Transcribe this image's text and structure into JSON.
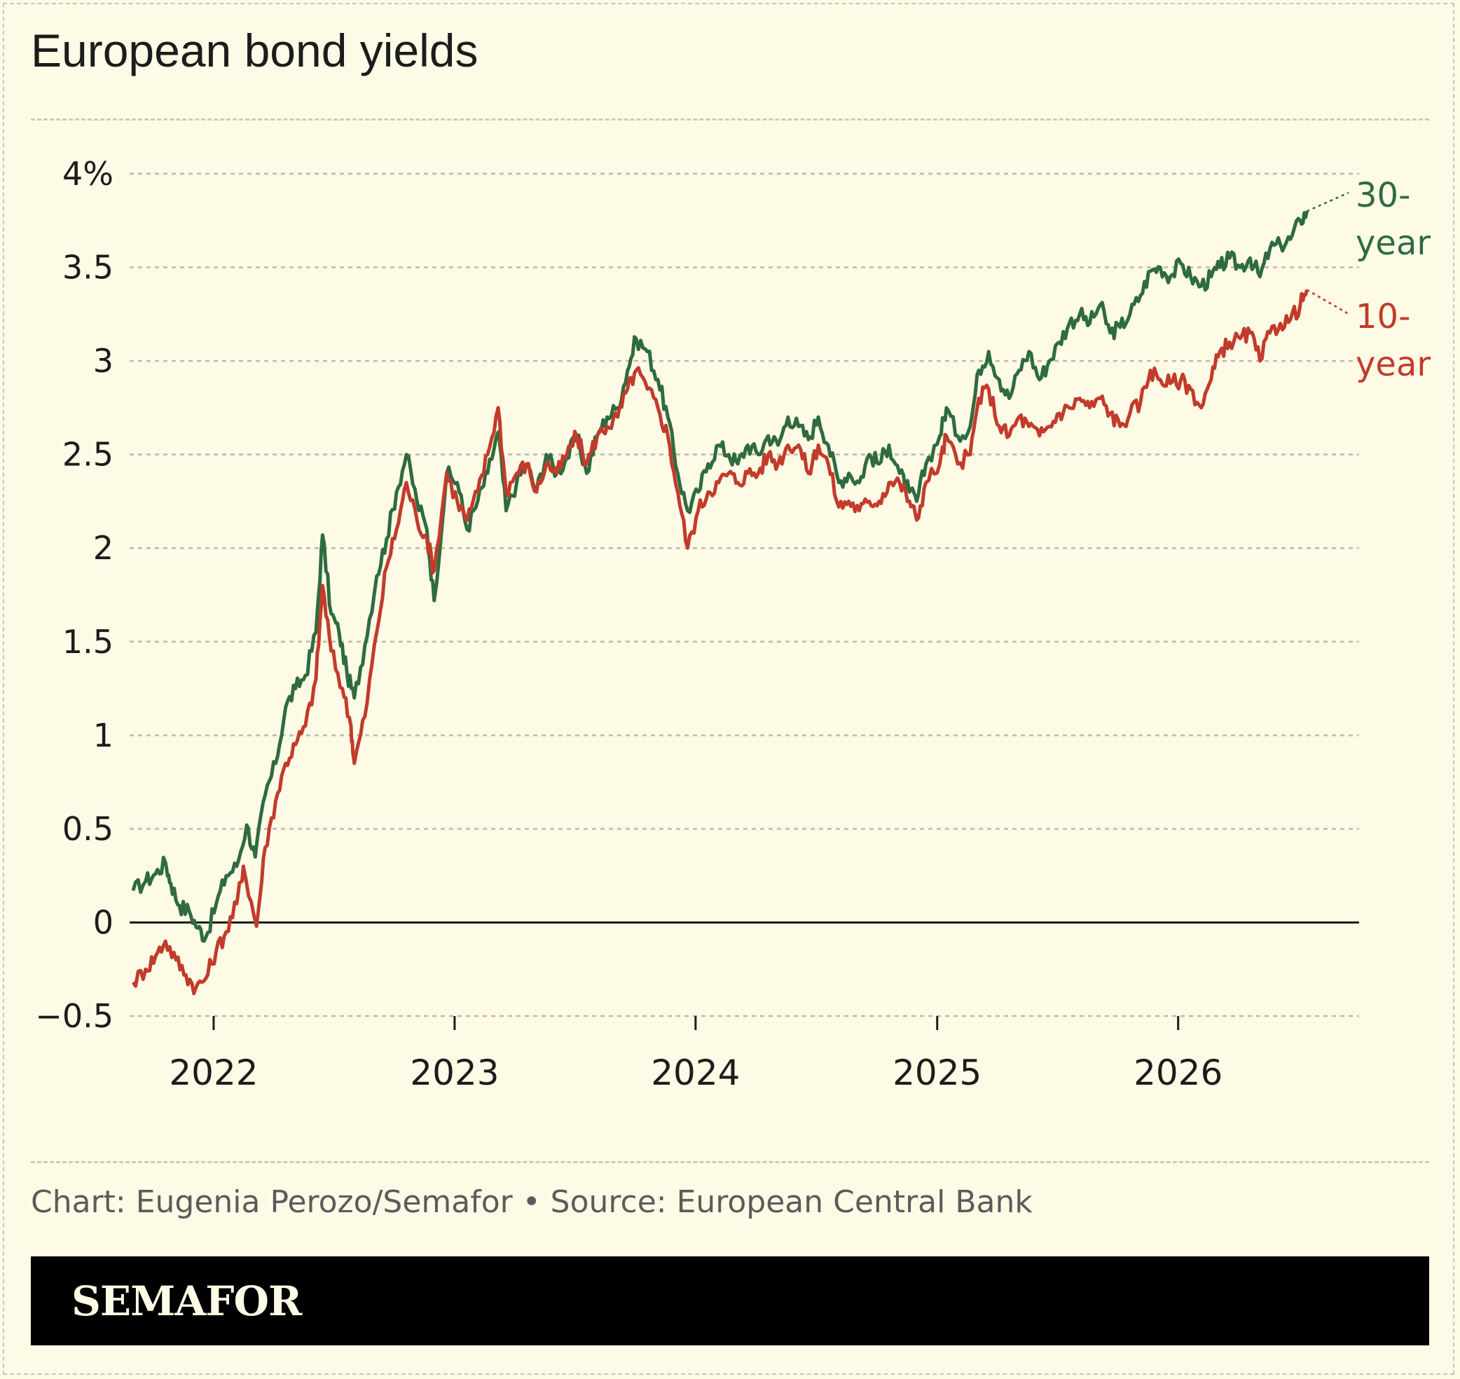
{
  "title": "European bond yields",
  "credit": "Chart: Eugenia Perozo/Semafor • Source: European Central Bank",
  "brand": "SEMAFOR",
  "colors": {
    "background": "#fdfbe6",
    "series_30y": "#2f6b3f",
    "series_10y": "#c23b2b",
    "gridline": "#bdb9a6",
    "zero_line": "#1c1c1c",
    "footer": "#000000"
  },
  "chart_data": {
    "type": "line",
    "y_tick_labels": [
      "−0.5",
      "0",
      "0.5",
      "1",
      "1.5",
      "2",
      "2.5",
      "3",
      "3.5",
      "4%"
    ],
    "y_tick_values": [
      -0.5,
      0,
      0.5,
      1,
      1.5,
      2,
      2.5,
      3,
      3.5,
      4
    ],
    "ylim": [
      -0.5,
      4
    ],
    "x_tick_labels": [
      "2022",
      "2023",
      "2024",
      "2025",
      "2026"
    ],
    "xlim": [
      "2021-09-01",
      "2026-09-30"
    ],
    "grid": true,
    "series": [
      {
        "name": "30-year",
        "label_lines": [
          "30-",
          "year"
        ],
        "color": "#2f6b3f",
        "points": [
          [
            "2021-09-01",
            0.17
          ],
          [
            "2021-09-20",
            0.22
          ],
          [
            "2021-10-05",
            0.26
          ],
          [
            "2021-10-20",
            0.32
          ],
          [
            "2021-10-28",
            0.21
          ],
          [
            "2021-11-10",
            0.09
          ],
          [
            "2021-11-25",
            0.06
          ],
          [
            "2021-12-08",
            -0.03
          ],
          [
            "2021-12-20",
            -0.08
          ],
          [
            "2022-01-05",
            0.1
          ],
          [
            "2022-01-20",
            0.25
          ],
          [
            "2022-02-05",
            0.3
          ],
          [
            "2022-02-20",
            0.52
          ],
          [
            "2022-03-05",
            0.35
          ],
          [
            "2022-03-20",
            0.68
          ],
          [
            "2022-04-05",
            0.85
          ],
          [
            "2022-04-20",
            1.15
          ],
          [
            "2022-05-05",
            1.25
          ],
          [
            "2022-05-20",
            1.32
          ],
          [
            "2022-06-05",
            1.55
          ],
          [
            "2022-06-15",
            2.07
          ],
          [
            "2022-06-28",
            1.65
          ],
          [
            "2022-07-10",
            1.55
          ],
          [
            "2022-07-22",
            1.33
          ],
          [
            "2022-08-02",
            1.2
          ],
          [
            "2022-08-18",
            1.48
          ],
          [
            "2022-09-05",
            1.85
          ],
          [
            "2022-09-20",
            2.05
          ],
          [
            "2022-10-05",
            2.3
          ],
          [
            "2022-10-20",
            2.5
          ],
          [
            "2022-11-05",
            2.25
          ],
          [
            "2022-11-20",
            2.1
          ],
          [
            "2022-12-01",
            1.72
          ],
          [
            "2022-12-20",
            2.4
          ],
          [
            "2023-01-05",
            2.35
          ],
          [
            "2023-01-20",
            2.1
          ],
          [
            "2023-02-05",
            2.25
          ],
          [
            "2023-02-20",
            2.4
          ],
          [
            "2023-03-08",
            2.62
          ],
          [
            "2023-03-20",
            2.2
          ],
          [
            "2023-04-05",
            2.35
          ],
          [
            "2023-04-20",
            2.45
          ],
          [
            "2023-05-05",
            2.3
          ],
          [
            "2023-05-20",
            2.5
          ],
          [
            "2023-06-05",
            2.4
          ],
          [
            "2023-06-20",
            2.48
          ],
          [
            "2023-07-05",
            2.6
          ],
          [
            "2023-07-20",
            2.4
          ],
          [
            "2023-08-05",
            2.6
          ],
          [
            "2023-08-20",
            2.7
          ],
          [
            "2023-09-05",
            2.75
          ],
          [
            "2023-09-20",
            2.95
          ],
          [
            "2023-10-03",
            3.12
          ],
          [
            "2023-10-20",
            3.05
          ],
          [
            "2023-11-05",
            2.9
          ],
          [
            "2023-11-20",
            2.7
          ],
          [
            "2023-12-05",
            2.4
          ],
          [
            "2023-12-20",
            2.2
          ],
          [
            "2024-01-05",
            2.3
          ],
          [
            "2024-01-20",
            2.45
          ],
          [
            "2024-02-05",
            2.55
          ],
          [
            "2024-02-20",
            2.5
          ],
          [
            "2024-03-05",
            2.45
          ],
          [
            "2024-03-20",
            2.55
          ],
          [
            "2024-04-05",
            2.5
          ],
          [
            "2024-04-20",
            2.6
          ],
          [
            "2024-05-05",
            2.55
          ],
          [
            "2024-05-20",
            2.7
          ],
          [
            "2024-06-05",
            2.65
          ],
          [
            "2024-06-20",
            2.58
          ],
          [
            "2024-07-05",
            2.7
          ],
          [
            "2024-07-20",
            2.55
          ],
          [
            "2024-08-05",
            2.35
          ],
          [
            "2024-08-20",
            2.4
          ],
          [
            "2024-09-05",
            2.35
          ],
          [
            "2024-09-20",
            2.5
          ],
          [
            "2024-10-05",
            2.45
          ],
          [
            "2024-10-20",
            2.55
          ],
          [
            "2024-11-05",
            2.4
          ],
          [
            "2024-11-20",
            2.3
          ],
          [
            "2024-12-01",
            2.25
          ],
          [
            "2024-12-15",
            2.45
          ],
          [
            "2025-01-05",
            2.6
          ],
          [
            "2025-01-15",
            2.75
          ],
          [
            "2025-02-01",
            2.6
          ],
          [
            "2025-02-20",
            2.65
          ],
          [
            "2025-03-05",
            2.95
          ],
          [
            "2025-03-20",
            3.05
          ],
          [
            "2025-04-05",
            2.9
          ],
          [
            "2025-04-20",
            2.8
          ],
          [
            "2025-05-05",
            2.95
          ],
          [
            "2025-05-20",
            3.05
          ],
          [
            "2025-06-05",
            2.9
          ],
          [
            "2025-06-20",
            3.0
          ],
          [
            "2025-07-05",
            3.1
          ],
          [
            "2025-07-20",
            3.2
          ],
          [
            "2025-08-05",
            3.25
          ],
          [
            "2025-08-20",
            3.2
          ],
          [
            "2025-09-05",
            3.3
          ],
          [
            "2025-09-20",
            3.15
          ],
          [
            "2025-10-05",
            3.18
          ],
          [
            "2025-10-20",
            3.25
          ],
          [
            "2025-11-05",
            3.35
          ],
          [
            "2025-11-20",
            3.48
          ],
          [
            "2025-12-05",
            3.5
          ],
          [
            "2025-12-20",
            3.45
          ],
          [
            "2026-01-05",
            3.52
          ],
          [
            "2026-01-20",
            3.45
          ],
          [
            "2026-02-05",
            3.4
          ],
          [
            "2026-02-20",
            3.45
          ],
          [
            "2026-03-05",
            3.5
          ],
          [
            "2026-03-20",
            3.55
          ],
          [
            "2026-04-05",
            3.5
          ],
          [
            "2026-04-20",
            3.55
          ],
          [
            "2026-05-05",
            3.45
          ],
          [
            "2026-05-20",
            3.6
          ],
          [
            "2026-06-05",
            3.62
          ],
          [
            "2026-06-20",
            3.65
          ],
          [
            "2026-07-05",
            3.75
          ],
          [
            "2026-07-15",
            3.8
          ]
        ]
      },
      {
        "name": "10-year",
        "label_lines": [
          "10-",
          "year"
        ],
        "color": "#c23b2b",
        "points": [
          [
            "2021-09-01",
            -0.32
          ],
          [
            "2021-09-20",
            -0.25
          ],
          [
            "2021-10-05",
            -0.18
          ],
          [
            "2021-10-20",
            -0.1
          ],
          [
            "2021-11-05",
            -0.2
          ],
          [
            "2021-11-20",
            -0.28
          ],
          [
            "2021-12-05",
            -0.35
          ],
          [
            "2021-12-20",
            -0.3
          ],
          [
            "2022-01-05",
            -0.15
          ],
          [
            "2022-01-20",
            -0.05
          ],
          [
            "2022-02-05",
            0.1
          ],
          [
            "2022-02-15",
            0.3
          ],
          [
            "2022-03-07",
            -0.02
          ],
          [
            "2022-03-20",
            0.4
          ],
          [
            "2022-04-05",
            0.65
          ],
          [
            "2022-04-20",
            0.85
          ],
          [
            "2022-05-05",
            0.95
          ],
          [
            "2022-05-20",
            1.05
          ],
          [
            "2022-06-05",
            1.3
          ],
          [
            "2022-06-15",
            1.8
          ],
          [
            "2022-06-28",
            1.45
          ],
          [
            "2022-07-15",
            1.25
          ],
          [
            "2022-07-28",
            1.05
          ],
          [
            "2022-08-02",
            0.85
          ],
          [
            "2022-08-18",
            1.1
          ],
          [
            "2022-09-05",
            1.55
          ],
          [
            "2022-09-20",
            1.9
          ],
          [
            "2022-10-05",
            2.1
          ],
          [
            "2022-10-20",
            2.35
          ],
          [
            "2022-11-05",
            2.15
          ],
          [
            "2022-11-20",
            2.05
          ],
          [
            "2022-12-01",
            1.88
          ],
          [
            "2022-12-20",
            2.4
          ],
          [
            "2023-01-05",
            2.25
          ],
          [
            "2023-01-20",
            2.15
          ],
          [
            "2023-02-05",
            2.3
          ],
          [
            "2023-02-20",
            2.5
          ],
          [
            "2023-03-08",
            2.75
          ],
          [
            "2023-03-20",
            2.3
          ],
          [
            "2023-04-05",
            2.4
          ],
          [
            "2023-04-20",
            2.45
          ],
          [
            "2023-05-05",
            2.3
          ],
          [
            "2023-05-20",
            2.45
          ],
          [
            "2023-06-05",
            2.4
          ],
          [
            "2023-06-20",
            2.5
          ],
          [
            "2023-07-05",
            2.6
          ],
          [
            "2023-07-20",
            2.45
          ],
          [
            "2023-08-05",
            2.6
          ],
          [
            "2023-08-20",
            2.65
          ],
          [
            "2023-09-05",
            2.7
          ],
          [
            "2023-09-20",
            2.85
          ],
          [
            "2023-10-03",
            2.95
          ],
          [
            "2023-10-20",
            2.85
          ],
          [
            "2023-11-05",
            2.75
          ],
          [
            "2023-11-20",
            2.6
          ],
          [
            "2023-12-05",
            2.3
          ],
          [
            "2023-12-20",
            2.0
          ],
          [
            "2024-01-05",
            2.2
          ],
          [
            "2024-01-20",
            2.3
          ],
          [
            "2024-02-05",
            2.35
          ],
          [
            "2024-02-20",
            2.4
          ],
          [
            "2024-03-05",
            2.35
          ],
          [
            "2024-03-20",
            2.4
          ],
          [
            "2024-04-05",
            2.4
          ],
          [
            "2024-04-20",
            2.5
          ],
          [
            "2024-05-05",
            2.45
          ],
          [
            "2024-05-20",
            2.55
          ],
          [
            "2024-06-05",
            2.55
          ],
          [
            "2024-06-20",
            2.4
          ],
          [
            "2024-07-05",
            2.55
          ],
          [
            "2024-07-20",
            2.45
          ],
          [
            "2024-08-05",
            2.22
          ],
          [
            "2024-08-20",
            2.25
          ],
          [
            "2024-09-05",
            2.2
          ],
          [
            "2024-09-20",
            2.25
          ],
          [
            "2024-10-05",
            2.25
          ],
          [
            "2024-10-20",
            2.35
          ],
          [
            "2024-11-05",
            2.35
          ],
          [
            "2024-11-20",
            2.25
          ],
          [
            "2024-12-01",
            2.15
          ],
          [
            "2024-12-15",
            2.35
          ],
          [
            "2025-01-05",
            2.45
          ],
          [
            "2025-01-15",
            2.6
          ],
          [
            "2025-02-01",
            2.45
          ],
          [
            "2025-02-20",
            2.5
          ],
          [
            "2025-03-05",
            2.8
          ],
          [
            "2025-03-20",
            2.85
          ],
          [
            "2025-04-05",
            2.65
          ],
          [
            "2025-04-20",
            2.6
          ],
          [
            "2025-05-05",
            2.7
          ],
          [
            "2025-05-20",
            2.65
          ],
          [
            "2025-06-05",
            2.6
          ],
          [
            "2025-06-20",
            2.65
          ],
          [
            "2025-07-05",
            2.72
          ],
          [
            "2025-07-20",
            2.75
          ],
          [
            "2025-08-05",
            2.8
          ],
          [
            "2025-08-20",
            2.75
          ],
          [
            "2025-09-05",
            2.8
          ],
          [
            "2025-09-20",
            2.72
          ],
          [
            "2025-10-05",
            2.65
          ],
          [
            "2025-10-20",
            2.72
          ],
          [
            "2025-11-05",
            2.78
          ],
          [
            "2025-11-20",
            2.95
          ],
          [
            "2025-12-05",
            2.9
          ],
          [
            "2025-12-20",
            2.88
          ],
          [
            "2026-01-05",
            2.9
          ],
          [
            "2026-01-20",
            2.85
          ],
          [
            "2026-02-05",
            2.75
          ],
          [
            "2026-02-20",
            2.9
          ],
          [
            "2026-03-05",
            3.05
          ],
          [
            "2026-03-20",
            3.1
          ],
          [
            "2026-04-05",
            3.12
          ],
          [
            "2026-04-20",
            3.15
          ],
          [
            "2026-05-05",
            3.0
          ],
          [
            "2026-05-20",
            3.15
          ],
          [
            "2026-06-05",
            3.2
          ],
          [
            "2026-06-20",
            3.22
          ],
          [
            "2026-07-05",
            3.3
          ],
          [
            "2026-07-15",
            3.38
          ]
        ]
      }
    ]
  }
}
